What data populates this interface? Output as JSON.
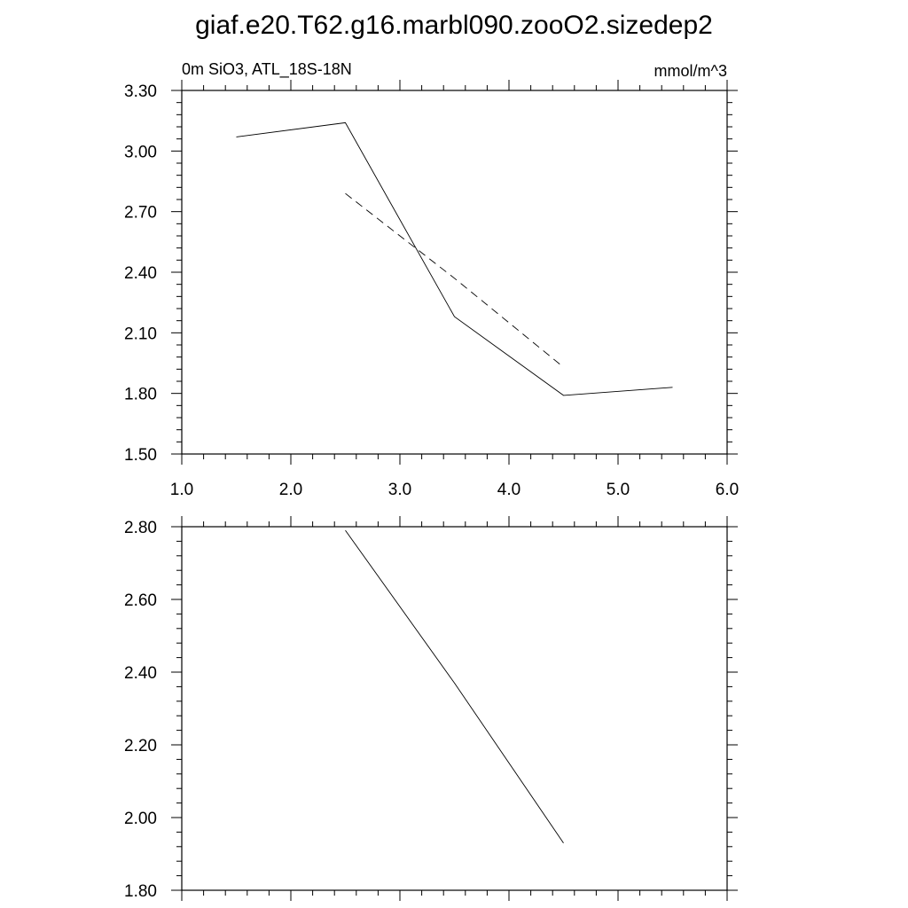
{
  "figure": {
    "title": "giaf.e20.T62.g16.marbl090.zooO2.sizedep2"
  },
  "chart_data": [
    {
      "type": "line",
      "title": "",
      "subtitle_left": "0m SiO3, ATL_18S-18N",
      "subtitle_right": "mmol/m^3",
      "xlabel": "",
      "ylabel": "",
      "xlim": [
        1.0,
        6.0
      ],
      "ylim": [
        1.5,
        3.3
      ],
      "xticks": [
        "1.0",
        "2.0",
        "3.0",
        "4.0",
        "5.0",
        "6.0"
      ],
      "yticks": [
        "1.50",
        "1.80",
        "2.10",
        "2.40",
        "2.70",
        "3.00",
        "3.30"
      ],
      "grid": false,
      "series": [
        {
          "style": "solid",
          "x": [
            1.5,
            2.5,
            3.5,
            4.5,
            5.5
          ],
          "y": [
            3.07,
            3.14,
            2.18,
            1.79,
            1.83
          ]
        },
        {
          "style": "dashed",
          "x": [
            2.5,
            3.5,
            4.5
          ],
          "y": [
            2.79,
            2.37,
            1.93
          ]
        }
      ]
    },
    {
      "type": "line",
      "title": "",
      "xlabel": "",
      "ylabel": "",
      "xlim": [
        1.0,
        6.0
      ],
      "ylim": [
        1.8,
        2.8
      ],
      "xticks": [],
      "yticks": [
        "1.80",
        "2.00",
        "2.20",
        "2.40",
        "2.60",
        "2.80"
      ],
      "grid": false,
      "series": [
        {
          "style": "solid",
          "x": [
            2.5,
            3.5,
            4.5
          ],
          "y": [
            2.79,
            2.37,
            1.93
          ]
        }
      ]
    }
  ]
}
